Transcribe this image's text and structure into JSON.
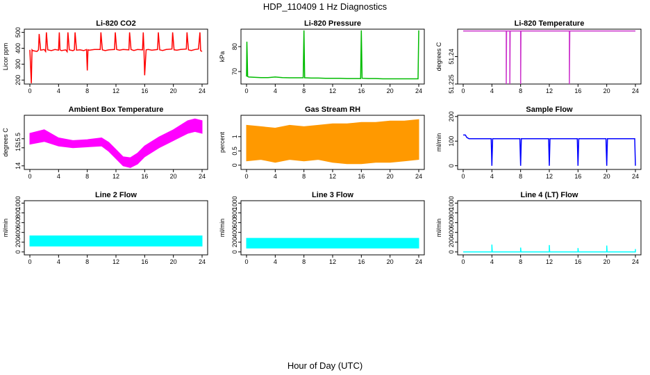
{
  "figure": {
    "title": "HDP_110409  1 Hz Diagnostics",
    "xlabel": "Hour of Day (UTC)"
  },
  "chart_data": [
    {
      "type": "line",
      "title": "Li-820 CO2",
      "ylabel": "Licor ppm",
      "color": "#ff0000",
      "xlim": [
        0,
        24
      ],
      "xticks": [
        0,
        4,
        8,
        12,
        16,
        20,
        24
      ],
      "ylim": [
        175,
        520
      ],
      "yticks": [
        200,
        300,
        400,
        500
      ],
      "x": [
        0,
        0.2,
        0.3,
        0.4,
        1.0,
        1.2,
        1.3,
        1.5,
        2.0,
        2.2,
        2.3,
        2.5,
        3.0,
        3.5,
        4.0,
        4.1,
        4.2,
        4.4,
        5.0,
        5.2,
        5.3,
        5.5,
        6.0,
        6.2,
        6.3,
        6.5,
        7.0,
        7.5,
        7.9,
        8.0,
        8.1,
        8.3,
        9.0,
        9.8,
        9.9,
        10.1,
        10.5,
        11.0,
        11.8,
        11.9,
        12.1,
        12.5,
        13.0,
        13.8,
        13.9,
        14.1,
        14.5,
        15.0,
        15.7,
        15.8,
        15.9,
        16.0,
        16.2,
        16.5,
        17.0,
        17.8,
        17.9,
        18.1,
        18.5,
        19.0,
        19.8,
        19.9,
        20.1,
        20.5,
        21.0,
        21.8,
        21.9,
        22.1,
        22.5,
        23.0,
        23.5,
        23.7,
        23.8,
        24.0
      ],
      "y": [
        390,
        180,
        390,
        385,
        380,
        390,
        490,
        388,
        392,
        380,
        500,
        390,
        385,
        392,
        388,
        500,
        390,
        385,
        390,
        378,
        500,
        390,
        385,
        390,
        500,
        388,
        390,
        385,
        392,
        260,
        390,
        388,
        392,
        392,
        500,
        390,
        385,
        390,
        392,
        500,
        392,
        388,
        392,
        390,
        500,
        392,
        386,
        392,
        390,
        500,
        392,
        230,
        390,
        392,
        388,
        392,
        500,
        390,
        386,
        392,
        395,
        500,
        390,
        388,
        392,
        395,
        500,
        390,
        386,
        392,
        395,
        500,
        385,
        380
      ]
    },
    {
      "type": "line",
      "title": "Li-820 Pressure",
      "ylabel": "kPa",
      "color": "#00bb00",
      "xlim": [
        0,
        24
      ],
      "xticks": [
        0,
        4,
        8,
        12,
        16,
        20,
        24
      ],
      "ylim": [
        65,
        87
      ],
      "yticks": [
        70,
        80
      ],
      "x": [
        0,
        0.05,
        0.1,
        0.15,
        0.3,
        1,
        2,
        3,
        4,
        5,
        6,
        7,
        7.9,
        8.0,
        8.1,
        9,
        10,
        11,
        12,
        13,
        14,
        15,
        15.9,
        16.0,
        16.1,
        17,
        18,
        19,
        20,
        21,
        22,
        23,
        23.9,
        24.0
      ],
      "y": [
        68,
        82,
        76,
        68,
        67.8,
        67.7,
        67.6,
        67.6,
        67.8,
        67.6,
        67.5,
        67.5,
        67.5,
        86.5,
        67.5,
        67.4,
        67.4,
        67.3,
        67.3,
        67.3,
        67.2,
        67.2,
        67.2,
        86.5,
        67.3,
        67.2,
        67.2,
        67.1,
        67.1,
        67.1,
        67.1,
        67.1,
        67.1,
        86.5
      ]
    },
    {
      "type": "line",
      "title": "Li-820 Temperature",
      "ylabel": "degrees C",
      "color": "#cc33cc",
      "xlim": [
        0,
        24
      ],
      "xticks": [
        0,
        4,
        8,
        12,
        16,
        20,
        24
      ],
      "ylim": [
        51.225,
        51.255
      ],
      "yticks": [
        51.225,
        51.24
      ],
      "x": [
        0,
        6.0,
        6.0,
        6.05,
        6.5,
        6.5,
        6.55,
        8.0,
        8.0,
        8.05,
        14.8,
        14.8,
        14.85,
        24
      ],
      "y": [
        51.254,
        51.254,
        51.225,
        51.254,
        51.254,
        51.225,
        51.254,
        51.254,
        51.225,
        51.254,
        51.254,
        51.225,
        51.254,
        51.254
      ]
    },
    {
      "type": "area",
      "title": "Ambient Box Temperature",
      "ylabel": "degrees C",
      "color": "#ff00ff",
      "xlim": [
        0,
        24
      ],
      "xticks": [
        0,
        4,
        8,
        12,
        16,
        20,
        24
      ],
      "ylim": [
        13.8,
        16.8
      ],
      "yticks": [
        14.0,
        15.0,
        15.5
      ],
      "x": [
        0,
        2,
        4,
        6,
        8,
        10,
        11,
        12,
        13,
        14,
        15,
        16,
        18,
        20,
        22,
        23,
        24
      ],
      "y_low": [
        15.2,
        15.35,
        15.1,
        15.0,
        15.05,
        15.1,
        14.8,
        14.4,
        14.0,
        13.9,
        14.1,
        14.5,
        15.0,
        15.4,
        15.8,
        15.9,
        15.8
      ],
      "y_high": [
        15.8,
        16.0,
        15.55,
        15.4,
        15.45,
        15.55,
        15.3,
        14.9,
        14.5,
        14.45,
        14.7,
        15.1,
        15.6,
        16.0,
        16.5,
        16.6,
        16.5
      ]
    },
    {
      "type": "area",
      "title": "Gas Stream RH",
      "ylabel": "percent",
      "color": "#ff9900",
      "xlim": [
        0,
        24
      ],
      "xticks": [
        0,
        4,
        8,
        12,
        16,
        20,
        24
      ],
      "ylim": [
        -0.15,
        1.75
      ],
      "yticks": [
        0.0,
        0.5,
        1.0
      ],
      "x": [
        0,
        2,
        4,
        6,
        8,
        10,
        12,
        14,
        16,
        18,
        20,
        22,
        24
      ],
      "y_low": [
        0.15,
        0.2,
        0.1,
        0.2,
        0.15,
        0.2,
        0.1,
        0.05,
        0.05,
        0.1,
        0.1,
        0.15,
        0.2
      ],
      "y_high": [
        1.4,
        1.35,
        1.3,
        1.4,
        1.35,
        1.4,
        1.45,
        1.45,
        1.5,
        1.5,
        1.55,
        1.55,
        1.6
      ]
    },
    {
      "type": "line",
      "title": "Sample Flow",
      "ylabel": "ml/min",
      "color": "#0000ff",
      "xlim": [
        0,
        24
      ],
      "xticks": [
        0,
        4,
        8,
        12,
        16,
        20,
        24
      ],
      "ylim": [
        -15,
        205
      ],
      "yticks": [
        0,
        100,
        200
      ],
      "x": [
        0,
        0.3,
        0.5,
        0.8,
        3.9,
        4.0,
        4.1,
        4.3,
        7.9,
        8.0,
        8.1,
        8.3,
        11.9,
        12.0,
        12.1,
        12.3,
        15.9,
        16.0,
        16.1,
        16.3,
        19.9,
        20.0,
        20.1,
        20.3,
        23.9,
        24.0
      ],
      "y": [
        125,
        125,
        115,
        110,
        110,
        0,
        110,
        110,
        110,
        0,
        110,
        110,
        110,
        0,
        110,
        110,
        110,
        0,
        110,
        110,
        110,
        0,
        110,
        110,
        110,
        0
      ]
    },
    {
      "type": "area",
      "title": "Line 2 Flow",
      "ylabel": "ml/min",
      "color": "#00ffff",
      "xlim": [
        0,
        24
      ],
      "xticks": [
        0,
        4,
        8,
        12,
        16,
        20,
        24
      ],
      "ylim": [
        -60,
        1050
      ],
      "yticks": [
        0,
        200,
        400,
        600,
        800,
        1000
      ],
      "x": [
        0,
        24
      ],
      "y_low": [
        120,
        120
      ],
      "y_high": [
        330,
        330
      ]
    },
    {
      "type": "area",
      "title": "Line 3 Flow",
      "ylabel": "ml/min",
      "color": "#00ffff",
      "xlim": [
        0,
        24
      ],
      "xticks": [
        0,
        4,
        8,
        12,
        16,
        20,
        24
      ],
      "ylim": [
        -60,
        1050
      ],
      "yticks": [
        0,
        200,
        400,
        600,
        800,
        1000
      ],
      "x": [
        0,
        24
      ],
      "y_low": [
        80,
        80
      ],
      "y_high": [
        280,
        280
      ]
    },
    {
      "type": "line",
      "title": "Line 4 (LT) Flow",
      "ylabel": "ml/min",
      "color": "#00ffff",
      "xlim": [
        0,
        24
      ],
      "xticks": [
        0,
        4,
        8,
        12,
        16,
        20,
        24
      ],
      "ylim": [
        -60,
        1050
      ],
      "yticks": [
        0,
        200,
        400,
        600,
        800,
        1000
      ],
      "x": [
        0,
        4.0,
        4.0,
        4.05,
        8.0,
        8.0,
        8.05,
        12.0,
        12.0,
        12.05,
        16.0,
        16.0,
        16.05,
        20.0,
        20.0,
        20.05,
        24.0,
        24.0
      ],
      "y": [
        0,
        0,
        150,
        0,
        0,
        90,
        0,
        0,
        140,
        0,
        0,
        80,
        0,
        0,
        130,
        0,
        0,
        60
      ]
    }
  ]
}
